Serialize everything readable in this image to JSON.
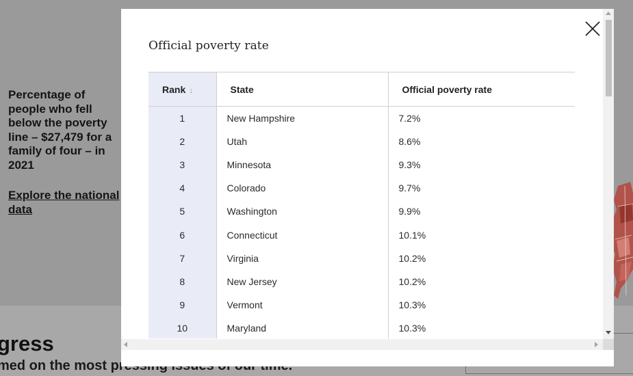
{
  "background": {
    "side_text": "Percentage of people who fell below the poverty line – $27,479 for a family of four – in 2021",
    "link_text": "Explore the national data",
    "headline_fragment": "gress",
    "subline_fragment": "med on the most pressing issues of our time."
  },
  "modal": {
    "title": "Official poverty rate",
    "close_icon": "close-icon",
    "table": {
      "columns": [
        "Rank",
        "State",
        "Official poverty rate"
      ],
      "sort_icon": "↓",
      "rows": [
        {
          "rank": "1",
          "state": "New Hampshire",
          "rate": "7.2%"
        },
        {
          "rank": "2",
          "state": "Utah",
          "rate": "8.6%"
        },
        {
          "rank": "3",
          "state": "Minnesota",
          "rate": "9.3%"
        },
        {
          "rank": "4",
          "state": "Colorado",
          "rate": "9.7%"
        },
        {
          "rank": "5",
          "state": "Washington",
          "rate": "9.9%"
        },
        {
          "rank": "6",
          "state": "Connecticut",
          "rate": "10.1%"
        },
        {
          "rank": "7",
          "state": "Virginia",
          "rate": "10.2%"
        },
        {
          "rank": "8",
          "state": "New Jersey",
          "rate": "10.2%"
        },
        {
          "rank": "9",
          "state": "Vermont",
          "rate": "10.3%"
        },
        {
          "rank": "10",
          "state": "Maryland",
          "rate": "10.3%"
        }
      ]
    }
  },
  "colors": {
    "overlay": "#9a9a9a",
    "rank_column_bg": "#e9ebf6",
    "map_fill": "#b5473c"
  }
}
